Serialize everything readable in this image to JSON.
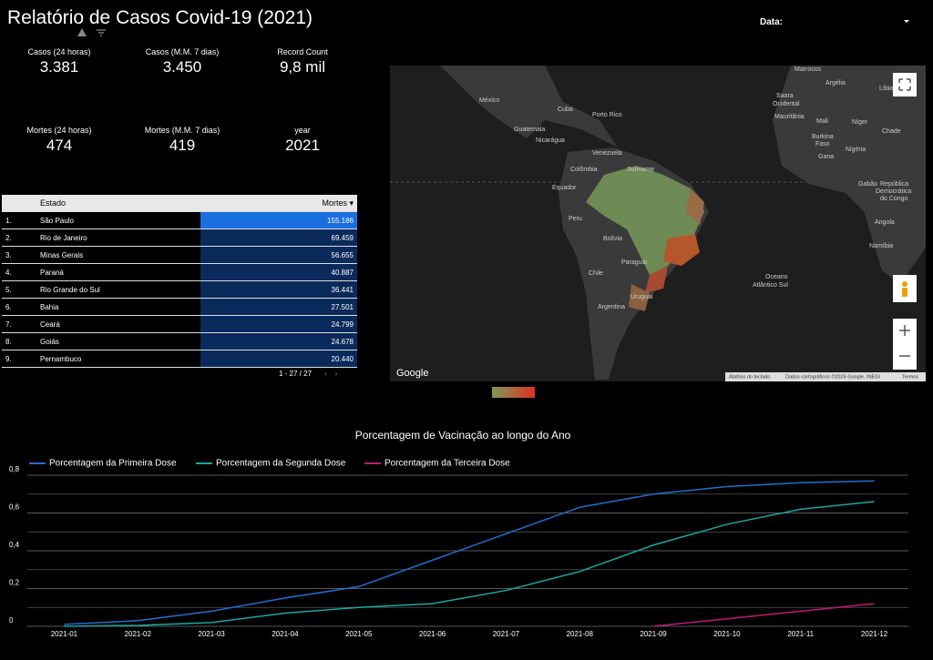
{
  "header": {
    "title": "Relatório de Casos Covid-19 (2021)",
    "date_label": "Data:"
  },
  "scorecards": [
    {
      "label": "Casos (24 horas)",
      "value": "3.381"
    },
    {
      "label": "Casos (M.M. 7 dias)",
      "value": "3.450"
    },
    {
      "label": "Record Count",
      "value": "9,8 mil"
    },
    {
      "label": "Mortes (24 horas)",
      "value": "474"
    },
    {
      "label": "Mortes (M.M. 7 dias)",
      "value": "419"
    },
    {
      "label": "year",
      "value": "2021"
    }
  ],
  "table": {
    "columns": [
      "Estado",
      "Mortes"
    ],
    "rows": [
      [
        "1.",
        "São Paulo",
        "155.186"
      ],
      [
        "2.",
        "Rio de Janeiro",
        "69.459"
      ],
      [
        "3.",
        "Minas Gerais",
        "56.655"
      ],
      [
        "4.",
        "Paraná",
        "40.887"
      ],
      [
        "5.",
        "Rio Grande do Sul",
        "36.441"
      ],
      [
        "6.",
        "Bahia",
        "27.501"
      ],
      [
        "7.",
        "Ceará",
        "24.799"
      ],
      [
        "8.",
        "Goiás",
        "24.678"
      ],
      [
        "9.",
        "Pernambuco",
        "20.440"
      ]
    ],
    "pager": "1 - 27 / 27"
  },
  "map": {
    "labels": [
      "México",
      "Cuba",
      "Porto Rico",
      "Guatemala",
      "Nicarágua",
      "Venezuela",
      "Colômbia",
      "Suriname",
      "Equador",
      "Peru",
      "Bolívia",
      "Paraguai",
      "Chile",
      "Uruguai",
      "Argentina",
      "Oceano",
      "Atlântico Sul",
      "Marrocos",
      "Argélia",
      "Líbia",
      "Saara",
      "Ocidental",
      "Mauritânia",
      "Mali",
      "Níger",
      "Chade",
      "Burkina",
      "Faso",
      "Gana",
      "Nigéria",
      "Gabão",
      "República",
      "Democrática",
      "do Congo",
      "Angola",
      "Namíbia"
    ],
    "brand": "Google",
    "shortcuts": "Atalhos do teclado",
    "attribution": "Dados cartográficos ©2025 Google, INEGI",
    "terms": "Termos"
  },
  "chart_data": {
    "type": "line",
    "title": "Porcentagem de Vacinação ao longo do Ano",
    "categories": [
      "2021-01",
      "2021-02",
      "2021-03",
      "2021-04",
      "2021-05",
      "2021-06",
      "2021-07",
      "2021-08",
      "2021-09",
      "2021-10",
      "2021-11",
      "2021-12"
    ],
    "series": [
      {
        "name": "Porcentagem da Primeira Dose",
        "color": "#1f6fd1",
        "values": [
          0.01,
          0.03,
          0.08,
          0.15,
          0.21,
          0.35,
          0.49,
          0.63,
          0.7,
          0.74,
          0.76,
          0.77
        ]
      },
      {
        "name": "Porcentagem da Segunda Dose",
        "color": "#1aa6a6",
        "values": [
          0,
          0.005,
          0.02,
          0.07,
          0.1,
          0.12,
          0.19,
          0.29,
          0.43,
          0.54,
          0.62,
          0.66
        ]
      },
      {
        "name": "Porcentagem da Terceira Dose",
        "color": "#c2187a",
        "values": [
          null,
          null,
          null,
          null,
          null,
          null,
          null,
          null,
          0,
          0.04,
          0.08,
          0.12
        ]
      }
    ],
    "ylim": [
      0,
      0.8
    ],
    "yticks": [
      0,
      {
        "value": 0.2,
        "label": "0,2"
      },
      {
        "value": 0.4,
        "label": "0,4"
      },
      {
        "value": 0.6,
        "label": "0,6"
      },
      {
        "value": 0.8,
        "label": "0,8"
      }
    ],
    "minor_gridlines": [
      0.1,
      0.3,
      0.5,
      0.7
    ],
    "grid": true,
    "legend": "top"
  }
}
